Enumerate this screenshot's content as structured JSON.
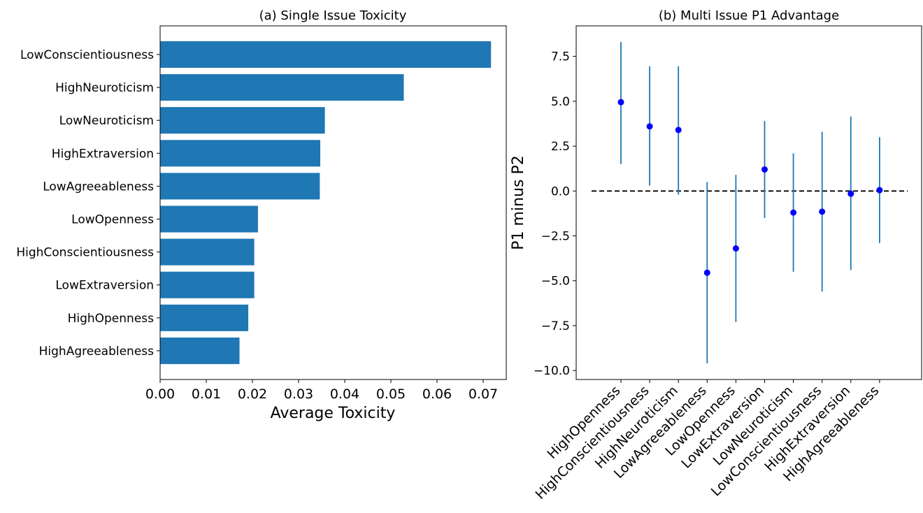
{
  "chart_data": [
    {
      "type": "bar",
      "orientation": "horizontal",
      "title": "(a) Single Issue Toxicity",
      "xlabel": "Average Toxicity",
      "ylabel": "",
      "xlim": [
        0,
        0.075
      ],
      "xticks": [
        "0.00",
        "0.01",
        "0.02",
        "0.03",
        "0.04",
        "0.05",
        "0.06",
        "0.07"
      ],
      "bar_color": "#1f77b4",
      "categories": [
        "LowConscientiousness",
        "HighNeuroticism",
        "LowNeuroticism",
        "HighExtraversion",
        "LowAgreeableness",
        "LowOpenness",
        "HighConscientiousness",
        "LowExtraversion",
        "HighOpenness",
        "HighAgreeableness"
      ],
      "values": [
        0.0717,
        0.0528,
        0.0357,
        0.0347,
        0.0346,
        0.0212,
        0.0204,
        0.0204,
        0.0191,
        0.0172
      ]
    },
    {
      "type": "scatter",
      "subtype": "errorbar",
      "title": "(b) Multi Issue P1 Advantage",
      "xlabel": "",
      "ylabel": "P1 minus P2",
      "ylim": [
        -10.5,
        9.2
      ],
      "yticks": [
        "7.5",
        "5.0",
        "2.5",
        "0.0",
        "−2.5",
        "−5.0",
        "−7.5",
        "−10.0"
      ],
      "point_color": "#0000ff",
      "errorbar_color": "#1f77b4",
      "reference_line": 0,
      "categories": [
        "HighOpenness",
        "HighConscientiousness",
        "HighNeuroticism",
        "LowAgreeableness",
        "LowOpenness",
        "LowExtraversion",
        "LowNeuroticism",
        "LowConscientiousness",
        "HighExtraversion",
        "HighAgreeableness"
      ],
      "values": [
        4.95,
        3.6,
        3.4,
        -4.55,
        -3.2,
        1.2,
        -1.2,
        -1.15,
        -0.15,
        0.05
      ],
      "lower": [
        1.5,
        0.3,
        -0.2,
        -9.6,
        -7.3,
        -1.5,
        -4.5,
        -5.6,
        -4.4,
        -2.9
      ],
      "upper": [
        8.3,
        6.95,
        6.95,
        0.5,
        0.9,
        3.9,
        2.1,
        3.3,
        4.15,
        3.0
      ]
    }
  ]
}
